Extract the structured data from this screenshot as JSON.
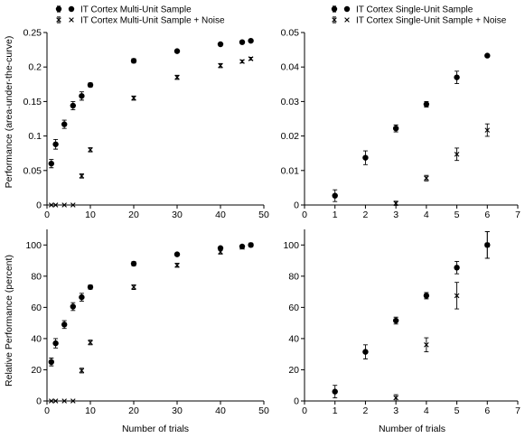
{
  "ylabel_top": "Performance (area-under-the-curve)",
  "ylabel_bottom": "Relative Performance (percent)",
  "xlabel": "Number of trials",
  "chart_data": [
    {
      "type": "scatter",
      "panel": "top-left",
      "xlim": [
        0,
        50
      ],
      "ylim": [
        0,
        0.25
      ],
      "xticks": [
        "0",
        "10",
        "20",
        "30",
        "40",
        "50"
      ],
      "yticks": [
        "0",
        "0.05",
        "0.1",
        "0.15",
        "0.2",
        "0.25"
      ],
      "legend_placement": "top",
      "series": [
        {
          "name": "IT Cortex Multi-Unit Sample",
          "marker": "dot",
          "points": [
            {
              "x": 1,
              "y": 0.06,
              "err": 0.006
            },
            {
              "x": 2,
              "y": 0.088,
              "err": 0.007
            },
            {
              "x": 4,
              "y": 0.117,
              "err": 0.006
            },
            {
              "x": 6,
              "y": 0.144,
              "err": 0.006
            },
            {
              "x": 8,
              "y": 0.158,
              "err": 0.006
            },
            {
              "x": 10,
              "y": 0.174,
              "err": 0.003
            },
            {
              "x": 20,
              "y": 0.209,
              "err": 0.003
            },
            {
              "x": 30,
              "y": 0.223,
              "err": 0
            },
            {
              "x": 40,
              "y": 0.233,
              "err": 0
            },
            {
              "x": 45,
              "y": 0.236,
              "err": 0
            },
            {
              "x": 47,
              "y": 0.238,
              "err": 0
            }
          ]
        },
        {
          "name": "IT Cortex Multi-Unit Sample + Noise",
          "marker": "x",
          "points": [
            {
              "x": 1,
              "y": 0,
              "err": 0
            },
            {
              "x": 2,
              "y": 0,
              "err": 0
            },
            {
              "x": 4,
              "y": 0,
              "err": 0
            },
            {
              "x": 6,
              "y": 0,
              "err": 0
            },
            {
              "x": 8,
              "y": 0.042,
              "err": 0.003
            },
            {
              "x": 10,
              "y": 0.08,
              "err": 0.003
            },
            {
              "x": 20,
              "y": 0.155,
              "err": 0.003
            },
            {
              "x": 30,
              "y": 0.185,
              "err": 0.003
            },
            {
              "x": 40,
              "y": 0.202,
              "err": 0.003
            },
            {
              "x": 45,
              "y": 0.208,
              "err": 0.002
            },
            {
              "x": 47,
              "y": 0.212,
              "err": 0.002
            }
          ]
        }
      ]
    },
    {
      "type": "scatter",
      "panel": "top-right",
      "xlim": [
        0,
        7
      ],
      "ylim": [
        0,
        0.05
      ],
      "xticks": [
        "0",
        "1",
        "2",
        "3",
        "4",
        "5",
        "6",
        "7"
      ],
      "yticks": [
        "0",
        "0.01",
        "0.02",
        "0.03",
        "0.04",
        "0.05"
      ],
      "legend_placement": "top",
      "series": [
        {
          "name": "IT Cortex Single-Unit Sample",
          "marker": "dot",
          "points": [
            {
              "x": 1,
              "y": 0.0027,
              "err": 0.0017
            },
            {
              "x": 2,
              "y": 0.0137,
              "err": 0.002
            },
            {
              "x": 3,
              "y": 0.0222,
              "err": 0.001
            },
            {
              "x": 4,
              "y": 0.0292,
              "err": 0.0008
            },
            {
              "x": 5,
              "y": 0.037,
              "err": 0.0018
            },
            {
              "x": 6,
              "y": 0.0433,
              "err": 0
            }
          ]
        },
        {
          "name": "IT Cortex Single-Unit Sample + Noise",
          "marker": "x",
          "points": [
            {
              "x": 3,
              "y": 0.0005,
              "err": 0.0006
            },
            {
              "x": 4,
              "y": 0.0078,
              "err": 0.0008
            },
            {
              "x": 5,
              "y": 0.0147,
              "err": 0.0018
            },
            {
              "x": 6,
              "y": 0.0217,
              "err": 0.0018
            }
          ]
        }
      ]
    },
    {
      "type": "scatter",
      "panel": "bottom-left",
      "xlim": [
        0,
        50
      ],
      "ylim": [
        0,
        110
      ],
      "xticks": [
        "0",
        "10",
        "20",
        "30",
        "40",
        "50"
      ],
      "yticks": [
        "0",
        "20",
        "40",
        "60",
        "80",
        "100"
      ],
      "series": [
        {
          "marker": "dot",
          "points": [
            {
              "x": 1,
              "y": 25,
              "err": 2.5
            },
            {
              "x": 2,
              "y": 37,
              "err": 3
            },
            {
              "x": 4,
              "y": 49,
              "err": 2.5
            },
            {
              "x": 6,
              "y": 60.5,
              "err": 2.5
            },
            {
              "x": 8,
              "y": 66.5,
              "err": 2.5
            },
            {
              "x": 10,
              "y": 73,
              "err": 1.3
            },
            {
              "x": 20,
              "y": 88,
              "err": 1.3
            },
            {
              "x": 30,
              "y": 94,
              "err": 0
            },
            {
              "x": 40,
              "y": 98,
              "err": 0
            },
            {
              "x": 45,
              "y": 99,
              "err": 0
            },
            {
              "x": 47,
              "y": 100,
              "err": 0
            }
          ]
        },
        {
          "marker": "x",
          "points": [
            {
              "x": 1,
              "y": 0,
              "err": 0
            },
            {
              "x": 2,
              "y": 0,
              "err": 0
            },
            {
              "x": 4,
              "y": 0,
              "err": 0
            },
            {
              "x": 6,
              "y": 0,
              "err": 0
            },
            {
              "x": 8,
              "y": 19.5,
              "err": 1.5
            },
            {
              "x": 10,
              "y": 37.5,
              "err": 1.5
            },
            {
              "x": 20,
              "y": 73,
              "err": 1.5
            },
            {
              "x": 30,
              "y": 87,
              "err": 1.3
            },
            {
              "x": 40,
              "y": 95.5,
              "err": 1.3
            },
            {
              "x": 45,
              "y": 98.5,
              "err": 1
            },
            {
              "x": 47,
              "y": 100,
              "err": 1
            }
          ]
        }
      ]
    },
    {
      "type": "scatter",
      "panel": "bottom-right",
      "xlim": [
        0,
        7
      ],
      "ylim": [
        0,
        110
      ],
      "xticks": [
        "0",
        "1",
        "2",
        "3",
        "4",
        "5",
        "6",
        "7"
      ],
      "yticks": [
        "0",
        "20",
        "40",
        "60",
        "80",
        "100"
      ],
      "series": [
        {
          "marker": "dot",
          "points": [
            {
              "x": 1,
              "y": 6,
              "err": 4
            },
            {
              "x": 2,
              "y": 31.5,
              "err": 4.5
            },
            {
              "x": 3,
              "y": 51.5,
              "err": 2.2
            },
            {
              "x": 4,
              "y": 67.5,
              "err": 2
            },
            {
              "x": 5,
              "y": 85.5,
              "err": 4
            },
            {
              "x": 6,
              "y": 100,
              "err": 8.5
            }
          ]
        },
        {
          "marker": "x",
          "points": [
            {
              "x": 3,
              "y": 2,
              "err": 2
            },
            {
              "x": 4,
              "y": 36,
              "err": 4.5
            },
            {
              "x": 5,
              "y": 67.5,
              "err": 8.5
            },
            {
              "x": 6,
              "y": 100,
              "err": 8.5
            }
          ]
        }
      ]
    }
  ]
}
